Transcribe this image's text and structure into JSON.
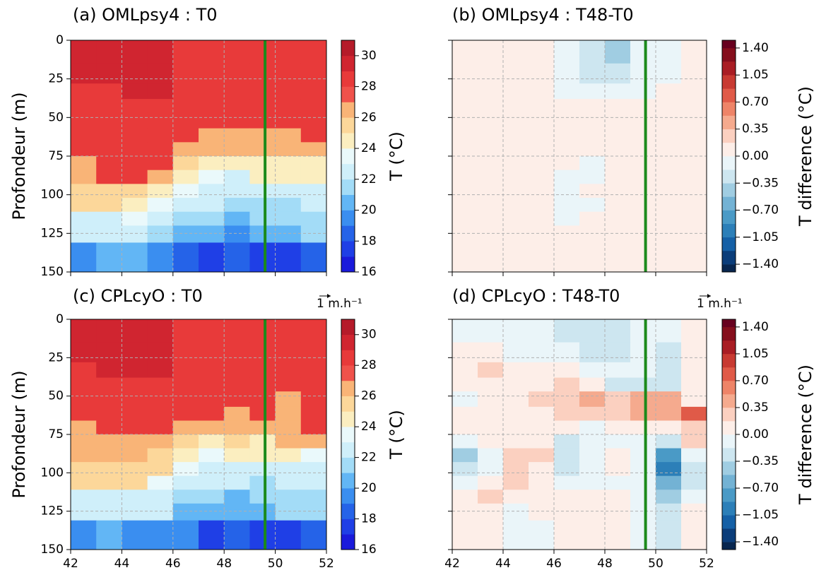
{
  "chart_data": [
    {
      "type": "heatmap",
      "title": "(a) OMLpsy4 : T0",
      "ylabel": "Profondeur (m)",
      "colorbar_label": "T (°C)",
      "x": [
        42,
        43,
        44,
        45,
        46,
        47,
        48,
        49,
        50,
        51,
        52
      ],
      "y": [
        0,
        15,
        28,
        38,
        47,
        57,
        66,
        75,
        84,
        93,
        102,
        111,
        120,
        131,
        150
      ],
      "xlim": [
        42,
        52
      ],
      "ylim": [
        150,
        0
      ],
      "xticks": [
        42,
        44,
        46,
        48,
        50,
        52
      ],
      "yticks": [
        0,
        25,
        50,
        75,
        100,
        125,
        150
      ],
      "xticklabels_visible": false,
      "yticklabels_visible": true,
      "grid": true,
      "vline": {
        "x": 49.6,
        "color": "#1b8a1b"
      },
      "levels": [
        16,
        17,
        18,
        19,
        20,
        21,
        22,
        23,
        24,
        25,
        26,
        27,
        28,
        29,
        30,
        31
      ],
      "colors": [
        "#1a1adb",
        "#1f3fe6",
        "#2563e8",
        "#3a8ef0",
        "#62b6f5",
        "#a3dcf7",
        "#cfeffa",
        "#eaf9fb",
        "#fbeec0",
        "#fcd79a",
        "#f9b477",
        "#f0524b",
        "#e83a3a",
        "#d02530",
        "#b51b2a"
      ],
      "cticks": [
        16,
        18,
        20,
        22,
        24,
        26,
        28,
        30
      ],
      "values": [
        [
          29.5,
          29.5,
          29.5,
          29.5,
          28.5,
          28.5,
          28.5,
          28.5,
          28.5,
          28.5
        ],
        [
          29.5,
          29.5,
          29.5,
          29.5,
          28.5,
          28.5,
          28.5,
          28.5,
          28.5,
          28.5
        ],
        [
          28.5,
          28.5,
          29.5,
          29.5,
          28.5,
          28.5,
          28.5,
          28.5,
          28.5,
          28.5
        ],
        [
          28.5,
          28.5,
          28.5,
          28.5,
          28.5,
          28.5,
          28.5,
          28.5,
          28.5,
          28.5
        ],
        [
          28.5,
          28.5,
          28.5,
          28.5,
          28.5,
          28.5,
          28.5,
          28.5,
          28.5,
          28.5
        ],
        [
          28.5,
          28.5,
          28.5,
          28.5,
          28.5,
          26.5,
          26.5,
          26.5,
          26.5,
          28.5
        ],
        [
          28.5,
          28.5,
          28.5,
          28.5,
          26.5,
          26.5,
          26.5,
          26.5,
          26.5,
          26.5
        ],
        [
          26.5,
          28.5,
          28.5,
          28.5,
          25.5,
          24.5,
          24.5,
          24.5,
          24.5,
          24.5
        ],
        [
          26.5,
          28.5,
          28.5,
          26.5,
          24.5,
          23.5,
          22.5,
          24.5,
          24.5,
          24.5
        ],
        [
          25.5,
          25.5,
          25.5,
          24.5,
          23.5,
          22.5,
          22.5,
          22.5,
          22.5,
          22.5
        ],
        [
          25.5,
          25.5,
          24.5,
          23.5,
          22.5,
          22.5,
          21.5,
          21.5,
          21.5,
          22.5
        ],
        [
          22.5,
          22.5,
          23.5,
          22.5,
          21.5,
          21.5,
          20.5,
          21.5,
          21.5,
          21.5
        ],
        [
          22.5,
          22.5,
          22.5,
          21.5,
          20.5,
          20.5,
          19.5,
          20.5,
          20.5,
          21.5
        ],
        [
          19.5,
          20.5,
          20.5,
          19.5,
          18.5,
          17.5,
          18.5,
          17.5,
          17.5,
          18.5
        ]
      ]
    },
    {
      "type": "heatmap",
      "title": "(b) OMLpsy4 : T48-T0",
      "colorbar_label": "T difference (°C)",
      "x": [
        42,
        43,
        44,
        45,
        46,
        47,
        48,
        49,
        50,
        51,
        52
      ],
      "y": [
        0,
        15,
        28,
        38,
        47,
        57,
        66,
        75,
        84,
        93,
        102,
        111,
        120,
        131,
        150
      ],
      "xlim": [
        42,
        52
      ],
      "ylim": [
        150,
        0
      ],
      "xticks": [
        42,
        44,
        46,
        48,
        50,
        52
      ],
      "yticks": [
        0,
        25,
        50,
        75,
        100,
        125,
        150
      ],
      "xticklabels_visible": false,
      "yticklabels_visible": false,
      "grid": true,
      "vline": {
        "x": 49.6,
        "color": "#1b8a1b"
      },
      "levels": [
        -1.5,
        -1.4,
        -1.225,
        -1.05,
        -0.875,
        -0.7,
        -0.525,
        -0.35,
        -0.175,
        0,
        0.175,
        0.35,
        0.525,
        0.7,
        0.875,
        1.05,
        1.225,
        1.4,
        1.5
      ],
      "colors": [
        "#08264f",
        "#0b3d7a",
        "#1560a6",
        "#2c7fb8",
        "#4a9ac6",
        "#73b2d4",
        "#a0cde2",
        "#cde6f0",
        "#eaf5f9",
        "#fdeee8",
        "#fbd0c0",
        "#f5aa8e",
        "#ee8468",
        "#e05a48",
        "#c83a32",
        "#a91d24",
        "#850e1c",
        "#67001f"
      ],
      "cticks": [
        {
          "value": -1.4,
          "label": "−1.40"
        },
        {
          "value": -1.05,
          "label": "−1.05"
        },
        {
          "value": -0.7,
          "label": "−0.70"
        },
        {
          "value": -0.35,
          "label": "−0.35"
        },
        {
          "value": 0,
          "label": "0.00"
        },
        {
          "value": 0.35,
          "label": "0.35"
        },
        {
          "value": 0.7,
          "label": "0.70"
        },
        {
          "value": 1.05,
          "label": "1.05"
        },
        {
          "value": 1.4,
          "label": "1.40"
        }
      ],
      "values": [
        [
          0.1,
          0.05,
          0.05,
          0.05,
          -0.1,
          -0.3,
          -0.4,
          -0.1,
          -0.05,
          0.05
        ],
        [
          0.05,
          0.05,
          0.05,
          0.05,
          -0.05,
          -0.3,
          -0.2,
          -0.05,
          -0.05,
          0.05
        ],
        [
          0.05,
          0.05,
          0.05,
          0.05,
          -0.05,
          -0.05,
          -0.05,
          -0.05,
          0.05,
          0.05
        ],
        [
          0.05,
          0.05,
          0.05,
          0.05,
          0.05,
          0.05,
          0.05,
          0.05,
          0.05,
          0.05
        ],
        [
          0.05,
          0.05,
          0.05,
          0.05,
          0.05,
          0.05,
          0.05,
          0.05,
          0.05,
          0.05
        ],
        [
          0.05,
          0.05,
          0.05,
          0.05,
          0.05,
          0.05,
          0.05,
          0.05,
          0.05,
          0.05
        ],
        [
          0.05,
          0.05,
          0.05,
          0.05,
          0.05,
          0.05,
          0.05,
          0.05,
          0.05,
          0.05
        ],
        [
          0.05,
          0.05,
          0.05,
          0.05,
          0.05,
          -0.05,
          0.05,
          0.05,
          0.05,
          0.05
        ],
        [
          0.05,
          0.05,
          0.05,
          0.05,
          -0.05,
          -0.05,
          0.05,
          0.05,
          0.05,
          0.05
        ],
        [
          0.05,
          0.05,
          0.05,
          0.05,
          -0.05,
          0.05,
          0.05,
          0.05,
          0.05,
          0.05
        ],
        [
          0.05,
          0.05,
          0.05,
          0.05,
          -0.05,
          -0.05,
          0.05,
          0.05,
          0.05,
          0.05
        ],
        [
          0.05,
          0.05,
          0.05,
          0.05,
          -0.05,
          0.05,
          0.05,
          0.05,
          0.05,
          0.05
        ],
        [
          0.05,
          0.05,
          0.05,
          0.05,
          0.05,
          0.05,
          0.05,
          0.05,
          0.05,
          0.05
        ],
        [
          0.05,
          0.05,
          0.05,
          0.05,
          0.05,
          0.05,
          0.05,
          0.05,
          0.05,
          0.05
        ]
      ]
    },
    {
      "type": "heatmap",
      "title": "(c) CPLcyO : T0",
      "ylabel": "Profondeur (m)",
      "colorbar_label": "T (°C)",
      "quiver_key": "1 m.h⁻¹",
      "x": [
        42,
        43,
        44,
        45,
        46,
        47,
        48,
        49,
        50,
        51,
        52
      ],
      "y": [
        0,
        15,
        28,
        38,
        47,
        57,
        66,
        75,
        84,
        93,
        102,
        111,
        120,
        131,
        150
      ],
      "xlim": [
        42,
        52
      ],
      "ylim": [
        150,
        0
      ],
      "xticks": [
        42,
        44,
        46,
        48,
        50,
        52
      ],
      "yticks": [
        0,
        25,
        50,
        75,
        100,
        125,
        150
      ],
      "xticklabels_visible": true,
      "yticklabels_visible": true,
      "grid": true,
      "vline": {
        "x": 49.6,
        "color": "#1b8a1b"
      },
      "levels": [
        16,
        17,
        18,
        19,
        20,
        21,
        22,
        23,
        24,
        25,
        26,
        27,
        28,
        29,
        30,
        31
      ],
      "colors": [
        "#1a1adb",
        "#1f3fe6",
        "#2563e8",
        "#3a8ef0",
        "#62b6f5",
        "#a3dcf7",
        "#cfeffa",
        "#eaf9fb",
        "#fbeec0",
        "#fcd79a",
        "#f9b477",
        "#f0524b",
        "#e83a3a",
        "#d02530",
        "#b51b2a"
      ],
      "cticks": [
        16,
        18,
        20,
        22,
        24,
        26,
        28,
        30
      ],
      "values": [
        [
          29.5,
          29.5,
          29.5,
          29.5,
          28.5,
          28.5,
          28.5,
          28.5,
          28.5,
          28.5
        ],
        [
          29.5,
          29.5,
          29.5,
          29.5,
          28.5,
          28.5,
          28.5,
          28.5,
          28.5,
          28.5
        ],
        [
          28.5,
          29.5,
          29.5,
          29.5,
          28.5,
          28.5,
          28.5,
          28.5,
          28.5,
          28.5
        ],
        [
          28.5,
          28.5,
          28.5,
          28.5,
          28.5,
          28.5,
          28.5,
          28.5,
          28.5,
          28.5
        ],
        [
          28.5,
          28.5,
          28.5,
          28.5,
          28.5,
          28.5,
          28.5,
          28.5,
          26.5,
          28.5
        ],
        [
          28.5,
          28.5,
          28.5,
          28.5,
          28.5,
          28.5,
          26.5,
          28.5,
          26.5,
          28.5
        ],
        [
          26.5,
          28.5,
          28.5,
          28.5,
          26.5,
          26.5,
          26.5,
          26.5,
          26.5,
          28.5
        ],
        [
          26.5,
          26.5,
          26.5,
          26.5,
          25.5,
          24.5,
          25.5,
          24.5,
          26.5,
          26.5
        ],
        [
          26.5,
          26.5,
          26.5,
          25.5,
          24.5,
          23.5,
          24.5,
          24.5,
          24.5,
          23.5
        ],
        [
          25.5,
          25.5,
          25.5,
          25.5,
          23.5,
          22.5,
          22.5,
          22.5,
          22.5,
          22.5
        ],
        [
          25.5,
          25.5,
          25.5,
          23.5,
          22.5,
          22.5,
          22.5,
          21.5,
          22.5,
          22.5
        ],
        [
          22.5,
          22.5,
          22.5,
          22.5,
          21.5,
          21.5,
          20.5,
          21.5,
          21.5,
          21.5
        ],
        [
          22.5,
          22.5,
          22.5,
          22.5,
          20.5,
          20.5,
          20.5,
          20.5,
          21.5,
          21.5
        ],
        [
          19.5,
          20.5,
          19.5,
          19.5,
          19.5,
          17.5,
          18.5,
          17.5,
          17.5,
          18.5
        ]
      ]
    },
    {
      "type": "heatmap",
      "title": "(d) CPLcyO : T48-T0",
      "colorbar_label": "T difference (°C)",
      "quiver_key": "1 m.h⁻¹",
      "x": [
        42,
        43,
        44,
        45,
        46,
        47,
        48,
        49,
        50,
        51,
        52
      ],
      "y": [
        0,
        15,
        28,
        38,
        47,
        57,
        66,
        75,
        84,
        93,
        102,
        111,
        120,
        131,
        150
      ],
      "xlim": [
        42,
        52
      ],
      "ylim": [
        150,
        0
      ],
      "xticks": [
        42,
        44,
        46,
        48,
        50,
        52
      ],
      "yticks": [
        0,
        25,
        50,
        75,
        100,
        125,
        150
      ],
      "xticklabels_visible": true,
      "yticklabels_visible": false,
      "grid": true,
      "vline": {
        "x": 49.6,
        "color": "#1b8a1b"
      },
      "levels": [
        -1.5,
        -1.4,
        -1.225,
        -1.05,
        -0.875,
        -0.7,
        -0.525,
        -0.35,
        -0.175,
        0,
        0.175,
        0.35,
        0.525,
        0.7,
        0.875,
        1.05,
        1.225,
        1.4,
        1.5
      ],
      "colors": [
        "#08264f",
        "#0b3d7a",
        "#1560a6",
        "#2c7fb8",
        "#4a9ac6",
        "#73b2d4",
        "#a0cde2",
        "#cde6f0",
        "#eaf5f9",
        "#fdeee8",
        "#fbd0c0",
        "#f5aa8e",
        "#ee8468",
        "#e05a48",
        "#c83a32",
        "#a91d24",
        "#850e1c",
        "#67001f"
      ],
      "cticks": [
        {
          "value": -1.4,
          "label": "−1.40"
        },
        {
          "value": -1.05,
          "label": "−1.05"
        },
        {
          "value": -0.7,
          "label": "−0.70"
        },
        {
          "value": -0.35,
          "label": "−0.35"
        },
        {
          "value": 0,
          "label": "0.00"
        },
        {
          "value": 0.35,
          "label": "0.35"
        },
        {
          "value": 0.7,
          "label": "0.70"
        },
        {
          "value": 1.05,
          "label": "1.05"
        },
        {
          "value": 1.4,
          "label": "1.40"
        }
      ],
      "values": [
        [
          -0.1,
          -0.1,
          -0.1,
          -0.1,
          -0.2,
          -0.3,
          -0.3,
          -0.1,
          -0.1,
          0.05
        ],
        [
          0.05,
          0.05,
          -0.1,
          -0.1,
          -0.1,
          -0.3,
          -0.3,
          -0.1,
          -0.2,
          0.05
        ],
        [
          0.05,
          0.3,
          0.05,
          0.05,
          0.05,
          -0.1,
          -0.1,
          -0.05,
          -0.3,
          0.05
        ],
        [
          0.05,
          0.05,
          0.05,
          0.1,
          0.2,
          0.05,
          -0.2,
          -0.3,
          -0.3,
          0.05
        ],
        [
          -0.05,
          0.05,
          0.05,
          0.2,
          0.3,
          0.4,
          0.3,
          0.5,
          0.5,
          0.05
        ],
        [
          0.05,
          0.05,
          0.05,
          0.05,
          0.2,
          0.3,
          0.3,
          0.5,
          0.4,
          0.8
        ],
        [
          0.05,
          0.05,
          0.05,
          0.05,
          0.05,
          -0.05,
          0.05,
          0.05,
          0.05,
          0.3
        ],
        [
          -0.05,
          0.05,
          0.1,
          0.1,
          -0.3,
          -0.1,
          -0.1,
          -0.1,
          -0.3,
          0.3
        ],
        [
          -0.4,
          -0.1,
          0.2,
          0.2,
          -0.3,
          -0.1,
          0.05,
          -0.1,
          -0.8,
          -0.1
        ],
        [
          -0.3,
          -0.05,
          0.3,
          0.1,
          -0.3,
          -0.1,
          0.05,
          -0.05,
          -0.9,
          -0.2
        ],
        [
          -0.1,
          0.05,
          0.3,
          0.1,
          -0.05,
          -0.05,
          -0.05,
          -0.05,
          -0.7,
          -0.2
        ],
        [
          0.05,
          0.2,
          0.05,
          0.05,
          0.05,
          0.05,
          0.1,
          -0.05,
          -0.5,
          -0.1
        ],
        [
          0.05,
          0.1,
          -0.05,
          0.05,
          0.05,
          0.1,
          0.1,
          -0.05,
          -0.3,
          0.05
        ],
        [
          0.05,
          0.05,
          -0.05,
          -0.05,
          0.1,
          0.05,
          0.05,
          -0.05,
          -0.2,
          0.05
        ]
      ]
    }
  ]
}
